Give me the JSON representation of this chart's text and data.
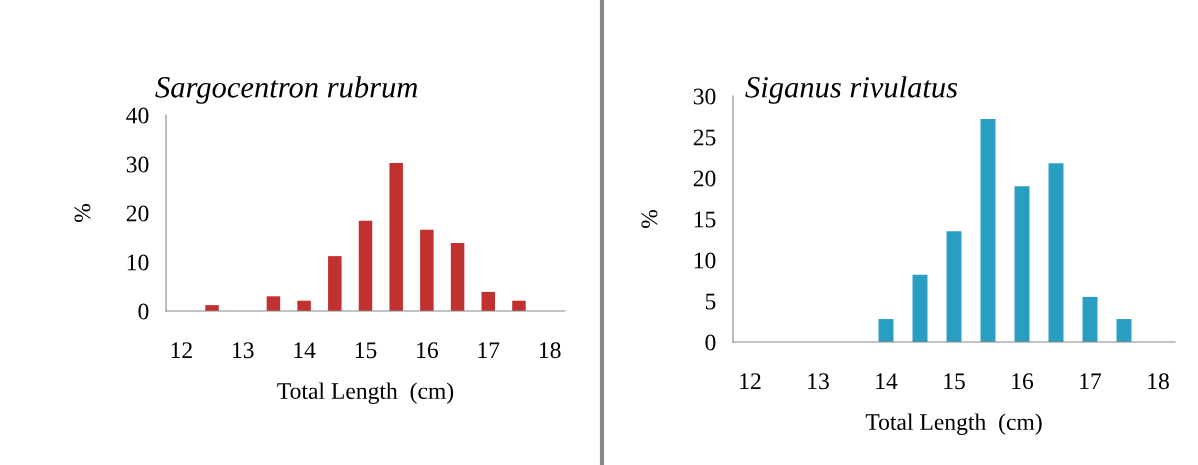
{
  "chart_data": [
    {
      "type": "bar",
      "title": "Sargocentron rubrum",
      "xlabel": "Total Length  (cm)",
      "ylabel": "%",
      "x": [
        12.5,
        13.5,
        14,
        14.5,
        15,
        15.5,
        16,
        16.5,
        17,
        17.5
      ],
      "values": [
        1.2,
        3.0,
        2.1,
        11.2,
        18.4,
        30.2,
        16.6,
        13.9,
        3.9,
        2.1
      ],
      "color": "#c0312f",
      "xlim": [
        11.75,
        18.25
      ],
      "xticks": [
        12,
        13,
        14,
        15,
        16,
        17,
        18
      ],
      "ylim": [
        0,
        40
      ],
      "yticks": [
        0,
        10,
        20,
        30,
        40
      ],
      "grid": false,
      "legend": false
    },
    {
      "type": "bar",
      "title": "Siganus rivulatus",
      "xlabel": "Total Length  (cm)",
      "ylabel": "%",
      "x": [
        14,
        14.5,
        15,
        15.5,
        16,
        16.5,
        17,
        17.5
      ],
      "values": [
        2.8,
        8.2,
        13.5,
        27.2,
        19.0,
        21.8,
        5.5,
        2.8
      ],
      "color": "#2a9ec0",
      "xlim": [
        11.75,
        18.25
      ],
      "xticks": [
        12,
        13,
        14,
        15,
        16,
        17,
        18
      ],
      "ylim": [
        0,
        30
      ],
      "yticks": [
        0,
        5,
        10,
        15,
        20,
        25,
        30
      ],
      "grid": false,
      "legend": false
    }
  ]
}
